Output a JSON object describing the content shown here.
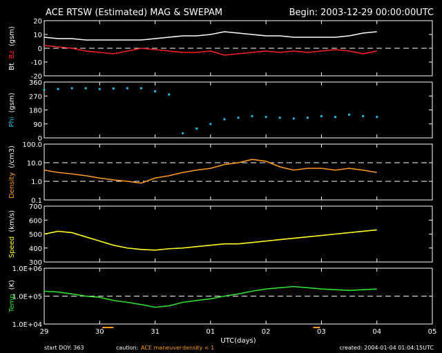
{
  "header": {
    "title": "ACE RTSW (Estimated) MAG & SWEPAM",
    "begin": "Begin: 2003-12-29 00:00:00UTC"
  },
  "footer": {
    "start_doy": "start DOY: 363",
    "caution": "caution:",
    "maneuver": "ACE maneuver",
    "density_note": "density < 1",
    "xlabel": "UTC(days)",
    "created": "created: 2004-01-04 01:04:15UTC"
  },
  "colors": {
    "bt": "#ffffff",
    "bz": "#ff2020",
    "phi": "#20b8e8",
    "density": "#ff9a1a",
    "speed": "#ffff20",
    "temp": "#30e030",
    "axis": "#ffffff",
    "maneuver": "#ff9a1a"
  },
  "chart_data": [
    {
      "type": "line",
      "panel": "mag",
      "ylabel_parts": [
        "Bt",
        "Bz",
        "(gsm)"
      ],
      "ylim": [
        -20,
        20
      ],
      "yticks": [
        -20,
        -10,
        0,
        10,
        20
      ],
      "dashed_ref": [
        0
      ],
      "x_days": [
        0,
        0.25,
        0.5,
        0.75,
        1,
        1.25,
        1.5,
        1.75,
        2,
        2.25,
        2.5,
        2.75,
        3,
        3.25,
        3.5,
        3.75,
        4,
        4.25,
        4.5,
        4.75,
        5,
        5.25,
        5.5,
        5.75,
        6
      ],
      "series": [
        {
          "name": "Bt",
          "values": [
            8,
            7,
            7,
            6,
            6,
            6,
            6,
            6,
            7,
            8,
            9,
            9,
            10,
            12,
            11,
            10,
            9,
            9,
            8,
            8,
            8,
            8,
            9,
            11,
            12
          ]
        },
        {
          "name": "Bz",
          "values": [
            2,
            1,
            0,
            -2,
            -3,
            -4,
            -2,
            0,
            -1,
            -2,
            -3,
            -3,
            -2,
            -5,
            -4,
            -3,
            -2,
            -3,
            -2,
            -3,
            -2,
            -1,
            -2,
            -4,
            -2
          ]
        }
      ]
    },
    {
      "type": "scatter",
      "panel": "phi",
      "ylabel_parts": [
        "Phi",
        "(gsm)"
      ],
      "ylim": [
        0,
        360
      ],
      "yticks": [
        0,
        90,
        180,
        270,
        360
      ],
      "x_days": [
        0,
        0.25,
        0.5,
        0.75,
        1,
        1.25,
        1.5,
        1.75,
        2,
        2.25,
        2.5,
        2.75,
        3,
        3.25,
        3.5,
        3.75,
        4,
        4.25,
        4.5,
        4.75,
        5,
        5.25,
        5.5,
        5.75,
        6
      ],
      "series": [
        {
          "name": "Phi",
          "values": [
            310,
            315,
            320,
            320,
            315,
            318,
            320,
            320,
            300,
            280,
            30,
            60,
            90,
            120,
            130,
            140,
            135,
            130,
            125,
            130,
            140,
            135,
            150,
            140,
            135
          ]
        }
      ]
    },
    {
      "type": "line",
      "panel": "density",
      "ylabel_parts": [
        "Density",
        "(/cm3)"
      ],
      "yscale": "log",
      "ylim": [
        0.1,
        100
      ],
      "yticks": [
        0.1,
        1.0,
        10.0,
        100.0
      ],
      "ytick_labels": [
        "0.1",
        "1.0",
        "10.0",
        "100.0"
      ],
      "dashed_ref": [
        1.0,
        10.0
      ],
      "x_days": [
        0,
        0.25,
        0.5,
        0.75,
        1,
        1.25,
        1.5,
        1.75,
        2,
        2.25,
        2.5,
        2.75,
        3,
        3.25,
        3.5,
        3.75,
        4,
        4.25,
        4.5,
        4.75,
        5,
        5.25,
        5.5,
        5.75,
        6
      ],
      "series": [
        {
          "name": "Density",
          "values": [
            4,
            3,
            2.5,
            2,
            1.5,
            1.2,
            1,
            0.8,
            1.5,
            2,
            3,
            4,
            5,
            8,
            10,
            15,
            12,
            6,
            4,
            5,
            5,
            4,
            5,
            4,
            3
          ]
        }
      ]
    },
    {
      "type": "line",
      "panel": "speed",
      "ylabel_parts": [
        "Speed",
        "(km/s)"
      ],
      "ylim": [
        300,
        700
      ],
      "yticks": [
        300,
        400,
        500,
        600,
        700
      ],
      "x_days": [
        0,
        0.25,
        0.5,
        0.75,
        1,
        1.25,
        1.5,
        1.75,
        2,
        2.25,
        2.5,
        2.75,
        3,
        3.25,
        3.5,
        3.75,
        4,
        4.25,
        4.5,
        4.75,
        5,
        5.25,
        5.5,
        5.75,
        6
      ],
      "series": [
        {
          "name": "Speed",
          "values": [
            500,
            520,
            510,
            480,
            450,
            420,
            400,
            390,
            385,
            395,
            400,
            410,
            420,
            430,
            430,
            440,
            450,
            460,
            470,
            480,
            490,
            500,
            510,
            520,
            530
          ]
        }
      ]
    },
    {
      "type": "line",
      "panel": "temp",
      "ylabel_parts": [
        "Temp",
        "(K)"
      ],
      "yscale": "log",
      "ylim": [
        10000,
        1000000
      ],
      "yticks": [
        10000,
        100000,
        1000000
      ],
      "ytick_labels": [
        "1.0E+04",
        "1.0E+05",
        "1.0E+06"
      ],
      "dashed_ref": [
        100000
      ],
      "x_days": [
        0,
        0.25,
        0.5,
        0.75,
        1,
        1.25,
        1.5,
        1.75,
        2,
        2.25,
        2.5,
        2.75,
        3,
        3.25,
        3.5,
        3.75,
        4,
        4.25,
        4.5,
        4.75,
        5,
        5.25,
        5.5,
        5.75,
        6
      ],
      "series": [
        {
          "name": "Temp",
          "values": [
            150000,
            140000,
            120000,
            100000,
            90000,
            70000,
            60000,
            50000,
            40000,
            45000,
            60000,
            70000,
            80000,
            100000,
            120000,
            150000,
            180000,
            200000,
            220000,
            200000,
            180000,
            170000,
            160000,
            170000,
            180000
          ]
        }
      ]
    }
  ],
  "x_axis": {
    "ticks": [
      "29",
      "30",
      "31",
      "01",
      "02",
      "03",
      "04",
      "05"
    ],
    "xlim_days": [
      0,
      7
    ]
  },
  "maneuver_marks": [
    {
      "x_start_day": 1.05,
      "x_end_day": 1.25
    },
    {
      "x_start_day": 4.85,
      "x_end_day": 4.97
    }
  ]
}
